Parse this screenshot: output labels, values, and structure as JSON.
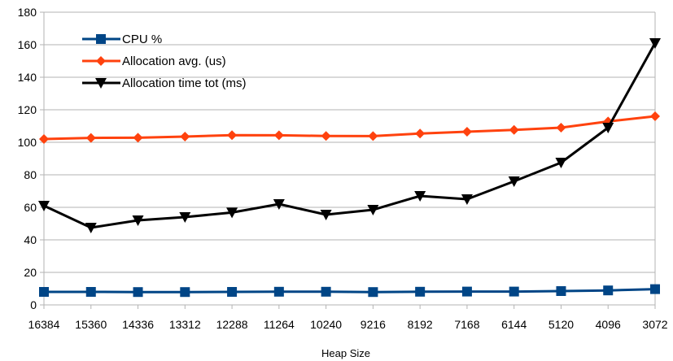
{
  "chart_data": {
    "type": "line",
    "title": "",
    "xlabel": "Heap Size",
    "ylabel": "",
    "ylim": [
      0,
      180
    ],
    "yticks": [
      0,
      20,
      40,
      60,
      80,
      100,
      120,
      140,
      160,
      180
    ],
    "grid": true,
    "legend_position": "top-left",
    "categories": [
      "16384",
      "15360",
      "14336",
      "13312",
      "12288",
      "11264",
      "10240",
      "9216",
      "8192",
      "7168",
      "6144",
      "5120",
      "4096",
      "3072"
    ],
    "series": [
      {
        "name": "CPU %",
        "color": "#004586",
        "marker": "square",
        "values": [
          8.0,
          8.0,
          7.9,
          7.9,
          8.0,
          8.1,
          8.1,
          7.9,
          8.1,
          8.2,
          8.2,
          8.5,
          8.9,
          9.7
        ]
      },
      {
        "name": "Allocation avg. (us)",
        "color": "#ff420e",
        "marker": "diamond",
        "values": [
          102.0,
          102.7,
          102.8,
          103.5,
          104.4,
          104.3,
          103.9,
          103.8,
          105.4,
          106.5,
          107.6,
          109.0,
          112.8,
          116.0
        ]
      },
      {
        "name": "Allocation time tot (ms)",
        "color": "#000000",
        "marker": "triangle-down",
        "values": [
          61.0,
          47.5,
          52.0,
          54.0,
          56.8,
          62.0,
          55.5,
          58.5,
          67.0,
          65.0,
          76.0,
          87.5,
          109.0,
          161.0
        ]
      }
    ]
  }
}
